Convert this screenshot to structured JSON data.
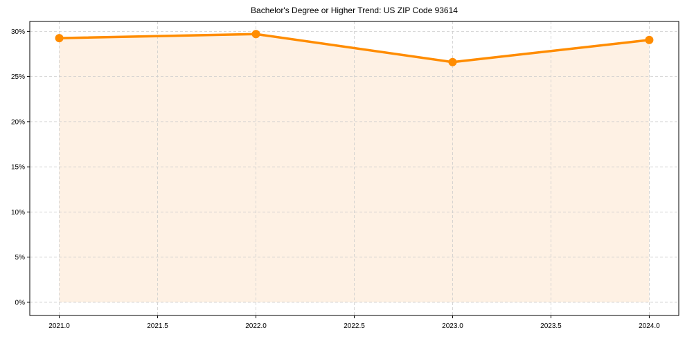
{
  "chart_data": {
    "type": "line",
    "title": "Bachelor's Degree or Higher Trend: US ZIP Code 93614",
    "xlabel": "",
    "ylabel": "",
    "x": [
      2021,
      2022,
      2023,
      2024
    ],
    "series": [
      {
        "name": "Bachelor's Degree or Higher",
        "values": [
          29.25,
          29.7,
          26.6,
          29.05
        ],
        "unit": "%",
        "color": "#FF8C00",
        "fill": "#FEF1E4",
        "marker": "circle"
      }
    ],
    "xlim": [
      2020.85,
      2024.15
    ],
    "ylim": [
      -1.46,
      31.1
    ],
    "x_ticks": [
      "2021.0",
      "2021.5",
      "2022.0",
      "2022.5",
      "2023.0",
      "2023.5",
      "2024.0"
    ],
    "x_tick_values": [
      2021.0,
      2021.5,
      2022.0,
      2022.5,
      2023.0,
      2023.5,
      2024.0
    ],
    "y_ticks": [
      "0%",
      "5%",
      "10%",
      "15%",
      "20%",
      "25%",
      "30%"
    ],
    "y_tick_values": [
      0,
      5,
      10,
      15,
      20,
      25,
      30
    ],
    "grid": true,
    "grid_style": "dashed",
    "legend": null
  },
  "colors": {
    "line": "#FF8C00",
    "fill": "#FEF1E4",
    "grid": "#CCCCCC",
    "axis": "#000000"
  }
}
